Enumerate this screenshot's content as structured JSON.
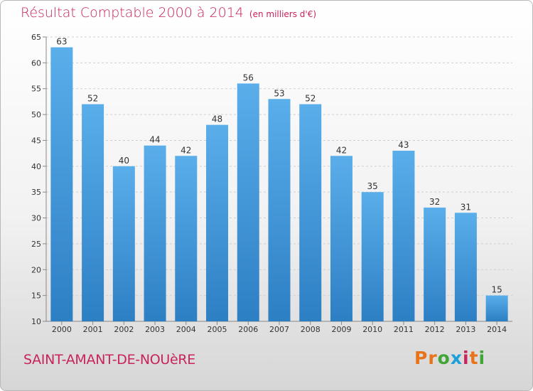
{
  "header": {
    "title": "Résultat Comptable 2000 à 2014",
    "unit": "(en milliers d'€)"
  },
  "footer": {
    "commune": "SAINT-AMANT-DE-NOUèRE",
    "brand": "Proxiti",
    "brand_letters": [
      {
        "ch": "P",
        "color": "#e8731b"
      },
      {
        "ch": "r",
        "color": "#e8731b"
      },
      {
        "ch": "o",
        "color": "#3fa535"
      },
      {
        "ch": "x",
        "color": "#1f9fd8"
      },
      {
        "ch": "i",
        "color": "#c8235a"
      },
      {
        "ch": "t",
        "color": "#e8731b"
      },
      {
        "ch": "i",
        "color": "#3fa535"
      }
    ]
  },
  "chart_data": {
    "type": "bar",
    "title": "Résultat Comptable 2000 à 2014",
    "subtitle": "(en milliers d'€)",
    "categories": [
      "2000",
      "2001",
      "2002",
      "2003",
      "2004",
      "2005",
      "2006",
      "2007",
      "2008",
      "2009",
      "2010",
      "2011",
      "2012",
      "2013",
      "2014"
    ],
    "values": [
      63,
      52,
      40,
      44,
      42,
      48,
      56,
      53,
      52,
      42,
      35,
      43,
      32,
      31,
      15
    ],
    "ylim": [
      10,
      65
    ],
    "yticks": [
      10,
      15,
      20,
      25,
      30,
      35,
      40,
      45,
      50,
      55,
      60,
      65
    ],
    "grid": true,
    "bar_color": "#4a9fe0",
    "grid_color": "#cfcfcf"
  }
}
